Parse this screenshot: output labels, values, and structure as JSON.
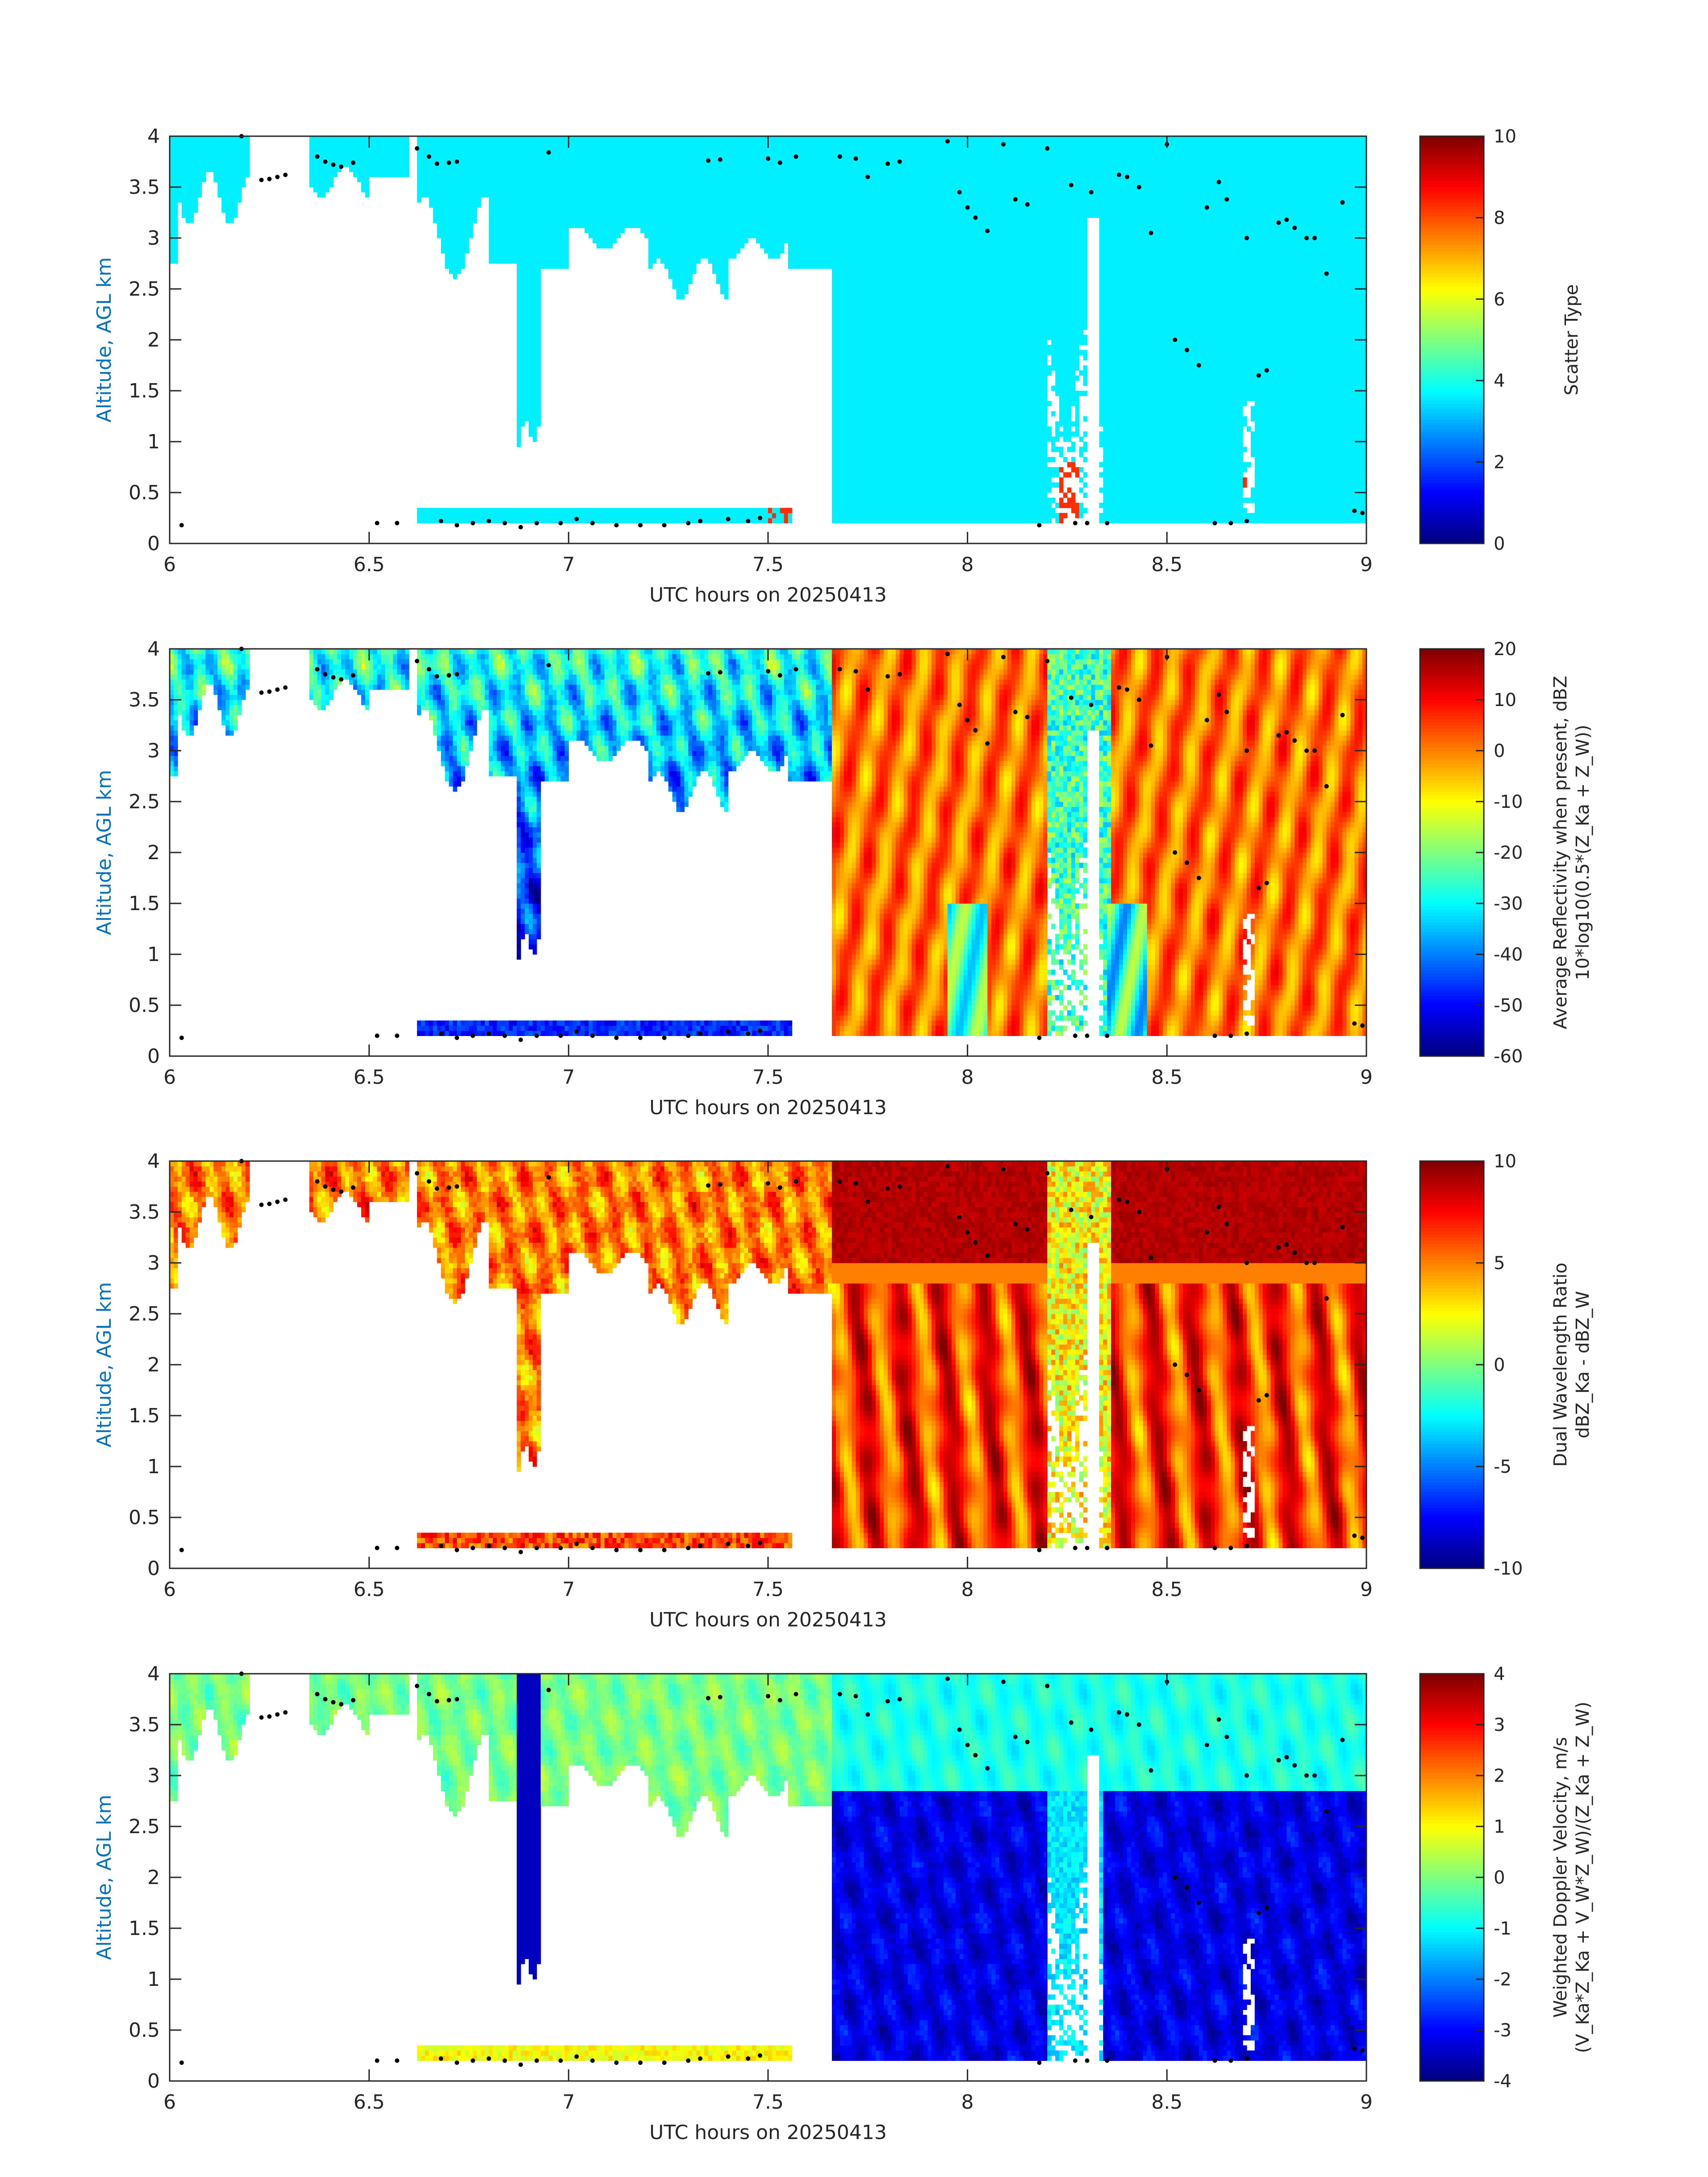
{
  "chart_data": [
    {
      "type": "heatmap",
      "xlabel": "UTC hours on 20250413",
      "ylabel": "Altitude, AGL km",
      "xlim": [
        6,
        9
      ],
      "ylim": [
        0,
        4
      ],
      "xticks": [
        "6",
        "6.5",
        "7",
        "7.5",
        "8",
        "8.5",
        "9"
      ],
      "yticks": [
        "0",
        "0.5",
        "1",
        "1.5",
        "2",
        "2.5",
        "3",
        "3.5",
        "4"
      ],
      "colorbar": {
        "label_lines": [
          "Scatter Type"
        ],
        "range": [
          0,
          10
        ],
        "ticks": [
          "0",
          "2",
          "4",
          "6",
          "8",
          "10"
        ]
      },
      "colormap": "jet",
      "field": "scatter_type",
      "dominant_value": 3.6,
      "secondary_value": 8.3
    },
    {
      "type": "heatmap",
      "xlabel": "UTC hours on 20250413",
      "ylabel": "Altitude, AGL km",
      "xlim": [
        6,
        9
      ],
      "ylim": [
        0,
        4
      ],
      "xticks": [
        "6",
        "6.5",
        "7",
        "7.5",
        "8",
        "8.5",
        "9"
      ],
      "yticks": [
        "0",
        "0.5",
        "1",
        "1.5",
        "2",
        "2.5",
        "3",
        "3.5",
        "4"
      ],
      "colorbar": {
        "label_lines": [
          "Average Reflectivity when present, dBZ",
          "10*log10(0.5*(Z_Ka + Z_W))"
        ],
        "range": [
          -60,
          20
        ],
        "ticks": [
          "-60",
          "-50",
          "-40",
          "-30",
          "-20",
          "-10",
          "0",
          "10",
          "20"
        ]
      },
      "colormap": "jet",
      "field": "reflectivity"
    },
    {
      "type": "heatmap",
      "xlabel": "UTC hours on 20250413",
      "ylabel": "Altitude, AGL km",
      "xlim": [
        6,
        9
      ],
      "ylim": [
        0,
        4
      ],
      "xticks": [
        "6",
        "6.5",
        "7",
        "7.5",
        "8",
        "8.5",
        "9"
      ],
      "yticks": [
        "0",
        "0.5",
        "1",
        "1.5",
        "2",
        "2.5",
        "3",
        "3.5",
        "4"
      ],
      "colorbar": {
        "label_lines": [
          "Dual Wavelength Ratio",
          "dBZ_Ka - dBZ_W"
        ],
        "range": [
          -10,
          10
        ],
        "ticks": [
          "-10",
          "-5",
          "0",
          "5",
          "10"
        ]
      },
      "colormap": "jet",
      "field": "dwr"
    },
    {
      "type": "heatmap",
      "xlabel": "UTC hours on 20250413",
      "ylabel": "Altitude, AGL km",
      "xlim": [
        6,
        9
      ],
      "ylim": [
        0,
        4
      ],
      "xticks": [
        "6",
        "6.5",
        "7",
        "7.5",
        "8",
        "8.5",
        "9"
      ],
      "yticks": [
        "0",
        "0.5",
        "1",
        "1.5",
        "2",
        "2.5",
        "3",
        "3.5",
        "4"
      ],
      "colorbar": {
        "label_lines": [
          "Weighted Doppler Velocity, m/s",
          "(V_Ka*Z_Ka + V_W*Z_W)/(Z_Ka + Z_W)"
        ],
        "range": [
          -4,
          4
        ],
        "ticks": [
          "-4",
          "-3",
          "-2",
          "-1",
          "0",
          "1",
          "2",
          "3",
          "4"
        ]
      },
      "colormap": "jet",
      "field": "velocity"
    }
  ],
  "cloud_base_points": [
    [
      6.03,
      0.18
    ],
    [
      6.18,
      4.0
    ],
    [
      6.23,
      3.57
    ],
    [
      6.25,
      3.58
    ],
    [
      6.27,
      3.6
    ],
    [
      6.29,
      3.62
    ],
    [
      6.37,
      3.8
    ],
    [
      6.39,
      3.75
    ],
    [
      6.41,
      3.72
    ],
    [
      6.43,
      3.7
    ],
    [
      6.46,
      3.74
    ],
    [
      6.52,
      0.2
    ],
    [
      6.57,
      0.2
    ],
    [
      6.62,
      3.88
    ],
    [
      6.65,
      3.8
    ],
    [
      6.67,
      3.73
    ],
    [
      6.7,
      3.74
    ],
    [
      6.72,
      3.75
    ],
    [
      6.68,
      0.22
    ],
    [
      6.72,
      0.18
    ],
    [
      6.76,
      0.2
    ],
    [
      6.8,
      0.22
    ],
    [
      6.84,
      0.2
    ],
    [
      6.88,
      0.16
    ],
    [
      6.92,
      0.2
    ],
    [
      6.95,
      3.84
    ],
    [
      6.98,
      0.2
    ],
    [
      7.02,
      0.24
    ],
    [
      7.06,
      0.2
    ],
    [
      7.12,
      0.18
    ],
    [
      7.18,
      0.18
    ],
    [
      7.24,
      0.18
    ],
    [
      7.3,
      0.2
    ],
    [
      7.35,
      3.76
    ],
    [
      7.38,
      3.77
    ],
    [
      7.33,
      0.22
    ],
    [
      7.4,
      0.24
    ],
    [
      7.45,
      0.22
    ],
    [
      7.48,
      0.25
    ],
    [
      7.5,
      3.78
    ],
    [
      7.53,
      3.74
    ],
    [
      7.57,
      3.8
    ],
    [
      7.68,
      3.8
    ],
    [
      7.72,
      3.78
    ],
    [
      7.75,
      3.6
    ],
    [
      7.8,
      3.73
    ],
    [
      7.83,
      3.75
    ],
    [
      7.95,
      3.95
    ],
    [
      7.98,
      3.45
    ],
    [
      8.0,
      3.3
    ],
    [
      8.02,
      3.2
    ],
    [
      8.05,
      3.07
    ],
    [
      8.09,
      3.92
    ],
    [
      8.12,
      3.38
    ],
    [
      8.15,
      3.33
    ],
    [
      8.18,
      0.18
    ],
    [
      8.2,
      3.88
    ],
    [
      8.26,
      3.52
    ],
    [
      8.31,
      3.45
    ],
    [
      8.35,
      0.2
    ],
    [
      8.38,
      3.62
    ],
    [
      8.4,
      3.6
    ],
    [
      8.43,
      3.5
    ],
    [
      8.46,
      3.05
    ],
    [
      8.5,
      3.92
    ],
    [
      8.52,
      2.0
    ],
    [
      8.55,
      1.9
    ],
    [
      8.58,
      1.75
    ],
    [
      8.6,
      3.3
    ],
    [
      8.63,
      3.55
    ],
    [
      8.65,
      3.38
    ],
    [
      8.7,
      3.0
    ],
    [
      8.73,
      1.65
    ],
    [
      8.75,
      1.7
    ],
    [
      8.78,
      3.15
    ],
    [
      8.8,
      3.18
    ],
    [
      8.82,
      3.1
    ],
    [
      8.85,
      3.0
    ],
    [
      8.87,
      3.0
    ],
    [
      8.9,
      2.65
    ],
    [
      8.94,
      3.35
    ],
    [
      8.97,
      0.32
    ],
    [
      8.99,
      0.3
    ],
    [
      8.62,
      0.2
    ],
    [
      8.66,
      0.2
    ],
    [
      8.7,
      0.22
    ],
    [
      8.27,
      0.2
    ],
    [
      8.3,
      0.2
    ]
  ]
}
